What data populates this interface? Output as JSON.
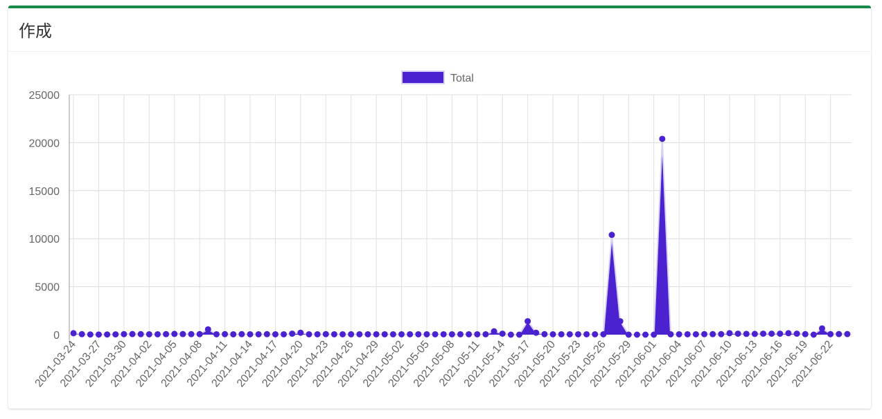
{
  "card": {
    "title": "作成"
  },
  "chart_data": {
    "type": "area",
    "legend": {
      "label": "Total",
      "position": "top",
      "color": "#4b22cf"
    },
    "ylim": [
      0,
      25000
    ],
    "yticks": [
      0,
      5000,
      10000,
      15000,
      20000,
      25000
    ],
    "grid": true,
    "x": [
      "2021-03-24",
      "2021-03-25",
      "2021-03-26",
      "2021-03-27",
      "2021-03-28",
      "2021-03-29",
      "2021-03-30",
      "2021-03-31",
      "2021-04-01",
      "2021-04-02",
      "2021-04-03",
      "2021-04-04",
      "2021-04-05",
      "2021-04-06",
      "2021-04-07",
      "2021-04-08",
      "2021-04-09",
      "2021-04-10",
      "2021-04-11",
      "2021-04-12",
      "2021-04-13",
      "2021-04-14",
      "2021-04-15",
      "2021-04-16",
      "2021-04-17",
      "2021-04-18",
      "2021-04-19",
      "2021-04-20",
      "2021-04-21",
      "2021-04-22",
      "2021-04-23",
      "2021-04-24",
      "2021-04-25",
      "2021-04-26",
      "2021-04-27",
      "2021-04-28",
      "2021-04-29",
      "2021-04-30",
      "2021-05-01",
      "2021-05-02",
      "2021-05-03",
      "2021-05-04",
      "2021-05-05",
      "2021-05-06",
      "2021-05-07",
      "2021-05-08",
      "2021-05-09",
      "2021-05-10",
      "2021-05-11",
      "2021-05-12",
      "2021-05-13",
      "2021-05-14",
      "2021-05-15",
      "2021-05-16",
      "2021-05-17",
      "2021-05-18",
      "2021-05-19",
      "2021-05-20",
      "2021-05-21",
      "2021-05-22",
      "2021-05-23",
      "2021-05-24",
      "2021-05-25",
      "2021-05-26",
      "2021-05-27",
      "2021-05-28",
      "2021-05-29",
      "2021-05-30",
      "2021-05-31",
      "2021-06-01",
      "2021-06-02",
      "2021-06-03",
      "2021-06-04",
      "2021-06-05",
      "2021-06-06",
      "2021-06-07",
      "2021-06-08",
      "2021-06-09",
      "2021-06-10",
      "2021-06-11",
      "2021-06-12",
      "2021-06-13",
      "2021-06-14",
      "2021-06-15",
      "2021-06-16",
      "2021-06-17",
      "2021-06-18",
      "2021-06-19",
      "2021-06-20",
      "2021-06-21",
      "2021-06-22",
      "2021-06-23",
      "2021-06-24"
    ],
    "xtick_labels": [
      "2021-03-24",
      "2021-03-27",
      "2021-03-30",
      "2021-04-02",
      "2021-04-05",
      "2021-04-08",
      "2021-04-11",
      "2021-04-14",
      "2021-04-17",
      "2021-04-20",
      "2021-04-23",
      "2021-04-26",
      "2021-04-29",
      "2021-05-02",
      "2021-05-05",
      "2021-05-08",
      "2021-05-11",
      "2021-05-14",
      "2021-05-17",
      "2021-05-20",
      "2021-05-23",
      "2021-05-26",
      "2021-05-29",
      "2021-06-01",
      "2021-06-04",
      "2021-06-07",
      "2021-06-10",
      "2021-06-13",
      "2021-06-16",
      "2021-06-19",
      "2021-06-22"
    ],
    "series": [
      {
        "name": "Total",
        "values": [
          150,
          50,
          20,
          10,
          20,
          30,
          50,
          60,
          50,
          40,
          40,
          50,
          80,
          60,
          50,
          50,
          550,
          40,
          50,
          40,
          50,
          40,
          40,
          50,
          40,
          40,
          100,
          200,
          40,
          40,
          50,
          40,
          40,
          40,
          40,
          40,
          40,
          40,
          40,
          40,
          40,
          40,
          40,
          40,
          40,
          40,
          40,
          40,
          40,
          40,
          350,
          100,
          0,
          0,
          1400,
          200,
          50,
          40,
          40,
          40,
          40,
          40,
          40,
          40,
          10400,
          1400,
          0,
          0,
          0,
          0,
          20400,
          40,
          40,
          40,
          40,
          50,
          50,
          50,
          150,
          100,
          80,
          80,
          100,
          100,
          100,
          150,
          100,
          50,
          0,
          650,
          50,
          60,
          60
        ]
      }
    ]
  }
}
